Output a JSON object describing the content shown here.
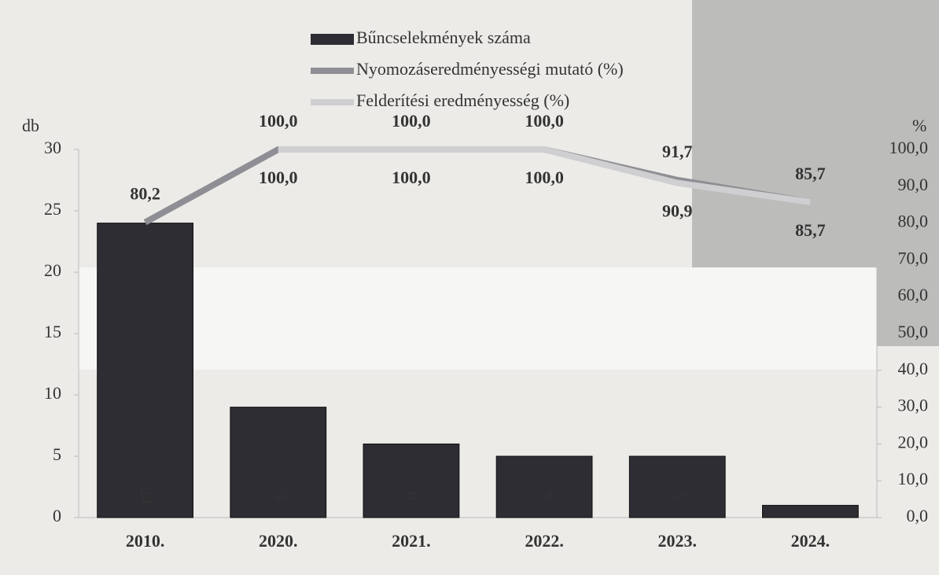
{
  "chart_data": {
    "type": "bar-line",
    "y_label": "db",
    "y2_label": "%",
    "categories": [
      "2010.",
      "2020.",
      "2021.",
      "2022.",
      "2023.",
      "2024."
    ],
    "ylim": [
      0,
      30
    ],
    "yticks": [
      0,
      5,
      10,
      15,
      20,
      25,
      30
    ],
    "y2lim": [
      0,
      100
    ],
    "y2ticks": [
      {
        "value": 0,
        "label": "0,0"
      },
      {
        "value": 10,
        "label": "10,0"
      },
      {
        "value": 20,
        "label": "20,0"
      },
      {
        "value": 30,
        "label": "30,0"
      },
      {
        "value": 40,
        "label": "40,0"
      },
      {
        "value": 50,
        "label": "50,0"
      },
      {
        "value": 60,
        "label": "60,0"
      },
      {
        "value": 70,
        "label": "70,0"
      },
      {
        "value": 80,
        "label": "80,0"
      },
      {
        "value": 90,
        "label": "90,0"
      },
      {
        "value": 100,
        "label": "100,0"
      }
    ],
    "legend": "top",
    "series": [
      {
        "name": "Bűncselekmények száma",
        "kind": "bar",
        "color": "#2d2d33",
        "values": [
          24,
          9,
          6,
          5,
          5,
          1
        ],
        "value_labels": [
          "24",
          "9",
          "6",
          "5",
          "5",
          null
        ]
      },
      {
        "name": "Nyomozáseredményességi mutató (%)",
        "kind": "line",
        "axis": "y2",
        "color": "#8e8e94",
        "values": [
          80.2,
          100,
          100,
          100,
          91.7,
          85.7
        ],
        "value_labels": [
          "80,2",
          "100,0",
          "100,0",
          "100,0",
          "91,7",
          "85,7"
        ]
      },
      {
        "name": "Felderítési eredményesség (%)",
        "kind": "line",
        "axis": "y2",
        "color": "#cfcfd2",
        "values": [
          null,
          100,
          100,
          100,
          90.9,
          85.7
        ],
        "value_labels": [
          null,
          "100,0",
          "100,0",
          "100,0",
          "90,9",
          "85,7"
        ]
      }
    ]
  }
}
